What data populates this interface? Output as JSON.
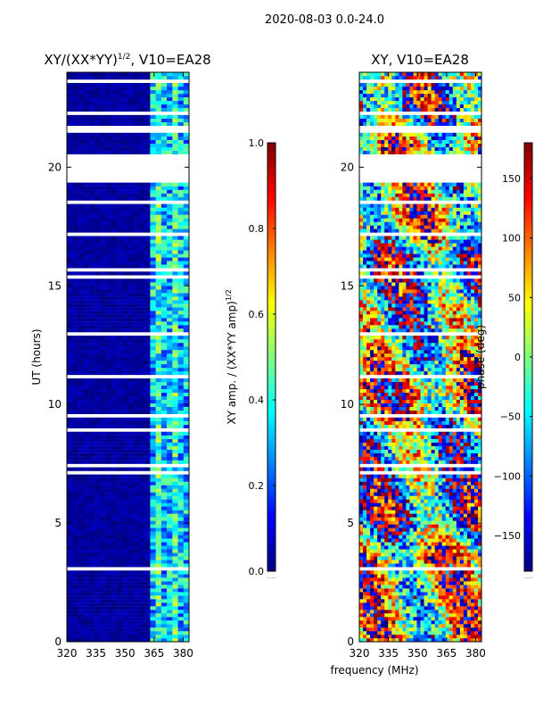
{
  "figure": {
    "suptitle": "2020-08-03 0.0-24.0",
    "xlabel": "frequency (MHz)",
    "colors": {
      "jet": [
        "#000080",
        "#0000ff",
        "#0080ff",
        "#00ffff",
        "#80ff80",
        "#ffff00",
        "#ff8000",
        "#ff0000",
        "#800000"
      ],
      "background": "#ffffff"
    }
  },
  "chart_data": [
    {
      "type": "heatmap",
      "title_main": "XY/(XX*YY)",
      "title_sup": "1/2",
      "title_rest": ", V10=EA28",
      "ylabel": "UT (hours)",
      "xlim": [
        320,
        383
      ],
      "ylim": [
        0,
        24
      ],
      "x_ticks": [
        320,
        335,
        350,
        365,
        380
      ],
      "y_ticks": [
        0,
        5,
        10,
        15,
        20
      ],
      "flagged_bands_hours": [
        [
          19.3,
          20.5
        ],
        [
          21.5,
          21.8
        ],
        [
          22.2,
          22.4
        ]
      ],
      "high_amplitude_freq_ranges_MHz": [
        [
          362,
          382
        ]
      ],
      "colorbar": {
        "label": "XY amp. / (XX*YY amp)",
        "label_sup": "1/2",
        "range": [
          0.0,
          1.0
        ],
        "ticks": [
          "0.0",
          "0.2",
          "0.4",
          "0.6",
          "0.8",
          "1.0"
        ],
        "footer": "......"
      }
    },
    {
      "type": "heatmap",
      "title": "XY, V10=EA28",
      "xlim": [
        320,
        383
      ],
      "ylim": [
        0,
        24
      ],
      "x_ticks": [
        320,
        335,
        350,
        365,
        380
      ],
      "y_ticks": [
        0,
        5,
        10,
        15,
        20
      ],
      "flagged_bands_hours": [
        [
          19.3,
          20.5
        ],
        [
          21.5,
          21.8
        ],
        [
          22.2,
          22.4
        ]
      ],
      "colorbar": {
        "label": "phase (deg)",
        "range": [
          -180,
          180
        ],
        "ticks": [
          "−150",
          "−100",
          "−50",
          "0",
          "50",
          "100",
          "150"
        ],
        "footer": "......"
      }
    }
  ]
}
